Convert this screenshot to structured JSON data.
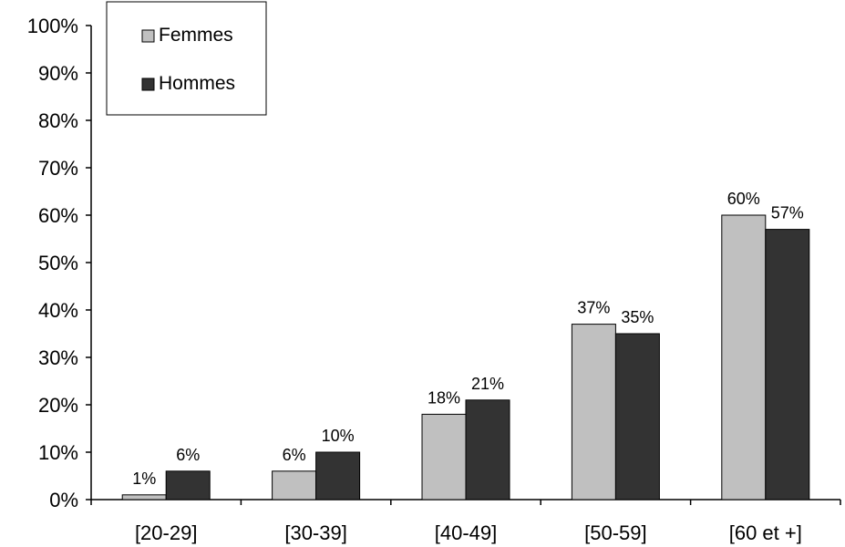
{
  "chart_data": {
    "type": "bar",
    "categories": [
      "[20-29]",
      "[30-39]",
      "[40-49]",
      "[50-59]",
      "[60 et +]"
    ],
    "series": [
      {
        "name": "Femmes",
        "values": [
          1,
          6,
          18,
          37,
          60
        ],
        "labels": [
          "1%",
          "6%",
          "18%",
          "37%",
          "60%"
        ],
        "color": "#c0c0c0"
      },
      {
        "name": "Hommes",
        "values": [
          6,
          10,
          21,
          35,
          57
        ],
        "labels": [
          "6%",
          "10%",
          "21%",
          "35%",
          "57%"
        ],
        "color": "#333333"
      }
    ],
    "y_ticks": [
      "0%",
      "10%",
      "20%",
      "30%",
      "40%",
      "50%",
      "60%",
      "70%",
      "80%",
      "90%",
      "100%"
    ],
    "ylim": [
      0,
      100
    ],
    "grid": false,
    "legend_position": "top-left"
  }
}
